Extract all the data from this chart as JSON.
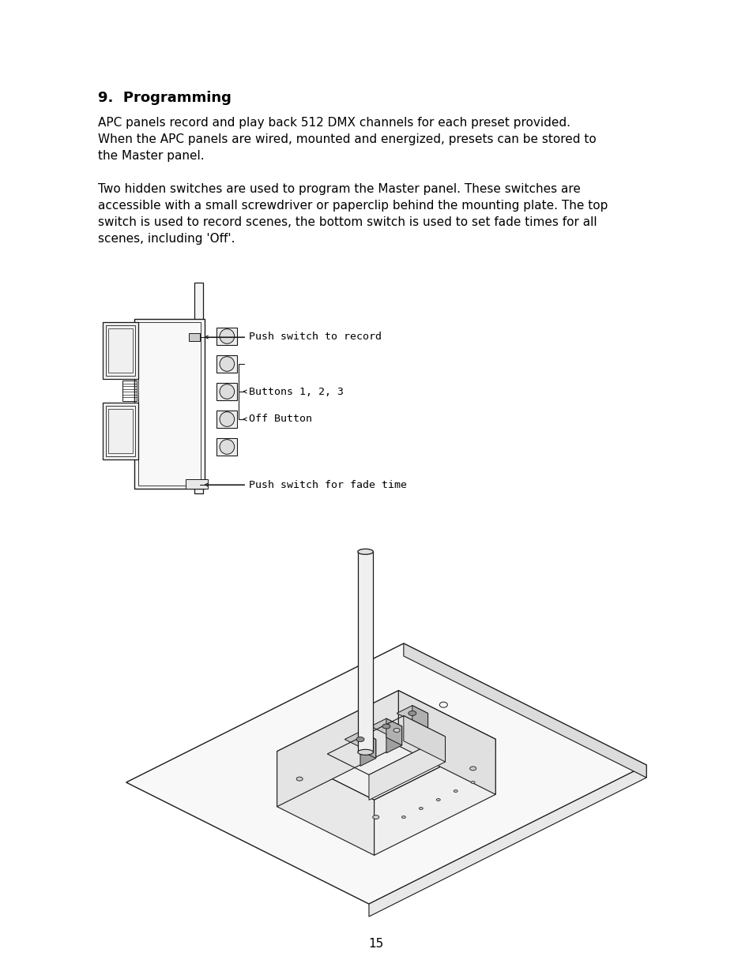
{
  "bg_color": "#ffffff",
  "page_number": "15",
  "title": "9.  Programming",
  "title_fontsize": 13,
  "body_fontsize": 11.0,
  "para1": "APC panels record and play back 512 DMX channels for each preset provided.\nWhen the APC panels are wired, mounted and energized, presets can be stored to\nthe Master panel.",
  "para2": "Two hidden switches are used to program the Master panel. These switches are\naccessible with a small screwdriver or paperclip behind the mounting plate. The top\nswitch is used to record scenes, the bottom switch is used to set fade times for all\nscenes, including 'Off'.",
  "label_fontsize": 9.5,
  "col": "#1a1a1a"
}
